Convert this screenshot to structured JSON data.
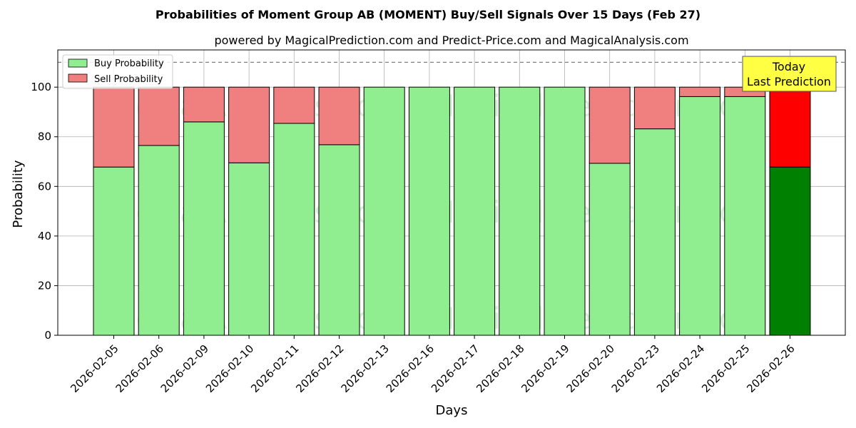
{
  "chart_data": {
    "type": "bar",
    "stacked": true,
    "title": "Probabilities of Moment Group AB (MOMENT) Buy/Sell Signals Over 15 Days (Feb 27)",
    "subtitle": "powered by MagicalPrediction.com and Predict-Price.com and MagicalAnalysis.com",
    "xlabel": "Days",
    "ylabel": "Probability",
    "ylim": [
      0,
      115
    ],
    "yticks": [
      0,
      20,
      40,
      60,
      80,
      100
    ],
    "reference_line": 110,
    "grid": true,
    "legend_position": "top-left",
    "categories": [
      "2026-02-05",
      "2026-02-06",
      "2026-02-09",
      "2026-02-10",
      "2026-02-11",
      "2026-02-12",
      "2026-02-13",
      "2026-02-16",
      "2026-02-17",
      "2026-02-18",
      "2026-02-19",
      "2026-02-20",
      "2026-02-23",
      "2026-02-24",
      "2026-02-25",
      "2026-02-26"
    ],
    "series": [
      {
        "name": "Buy Probability",
        "color": "#90ee90",
        "highlight_color": "#008000",
        "values": [
          67.8,
          76.5,
          86.0,
          69.5,
          85.4,
          76.8,
          100,
          100,
          100,
          100,
          100,
          69.3,
          83.2,
          96.2,
          96.2,
          67.8
        ]
      },
      {
        "name": "Sell Probability",
        "color": "#f08080",
        "highlight_color": "#ff0000",
        "values": [
          32.2,
          23.5,
          14.0,
          30.5,
          14.6,
          23.2,
          0,
          0,
          0,
          0,
          0,
          30.7,
          16.8,
          3.8,
          3.8,
          32.2
        ]
      }
    ],
    "highlight_index": 15,
    "annotation": {
      "lines": [
        "Today",
        "Last Prediction"
      ],
      "color": "#ffff44"
    },
    "watermarks": [
      "MagicalAnalysis.com",
      "MagicalPrediction.com"
    ]
  }
}
